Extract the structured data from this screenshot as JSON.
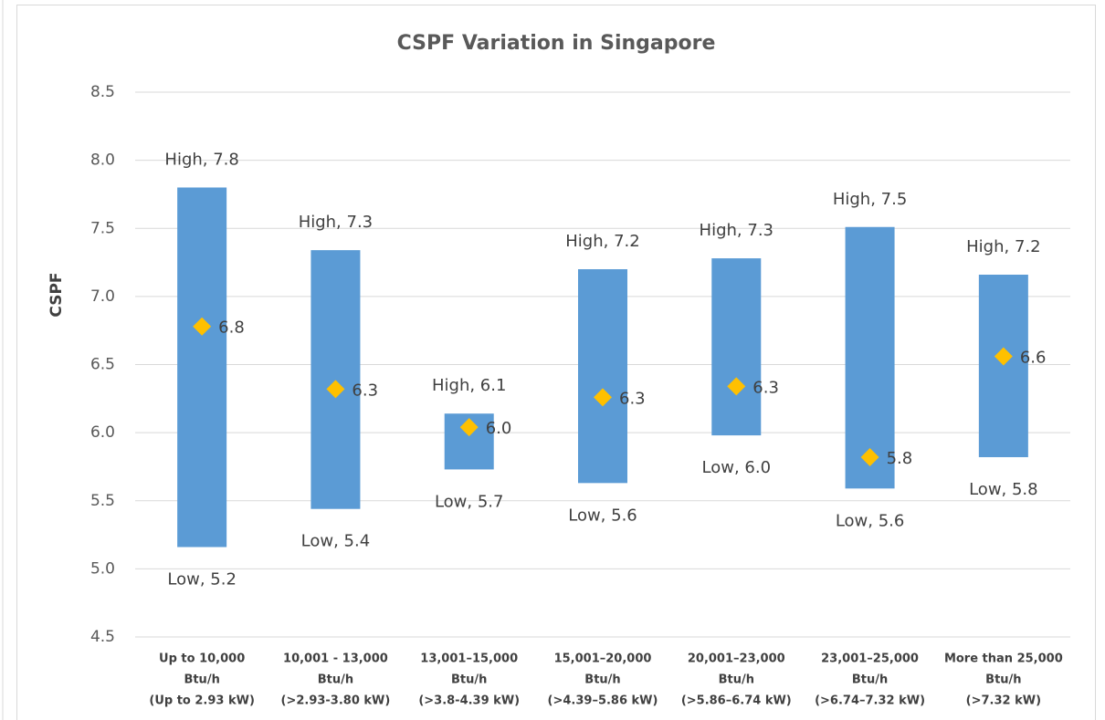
{
  "chart_data": {
    "type": "floating-range",
    "title": "CSPF Variation in Singapore",
    "y_label": "CSPF",
    "categories": [
      [
        "Up to 10,000",
        "Btu/h",
        "(Up to 2.93 kW)"
      ],
      [
        "10,001 - 13,000",
        "Btu/h",
        "(>2.93-3.80 kW)"
      ],
      [
        "13,001–15,000",
        "Btu/h",
        "(>3.8-4.39 kW)"
      ],
      [
        "15,001–20,000",
        "Btu/h",
        "(>4.39–5.86  kW)"
      ],
      [
        "20,001–23,000",
        "Btu/h",
        "(>5.86–6.74  kW)"
      ],
      [
        "23,001–25,000",
        "Btu/h",
        "(>6.74–7.32  kW)"
      ],
      [
        "More than 25,000",
        "Btu/h",
        "(>7.32 kW)"
      ]
    ],
    "series": [
      {
        "color": "#5b9bd5",
        "values": [
          7.8,
          7.34,
          6.14,
          7.2,
          7.28,
          7.51,
          7.16
        ],
        "value_labels": [
          "High, 7.8",
          "High, 7.3",
          "High, 6.1",
          "High, 7.2",
          "High, 7.3",
          "High, 7.5",
          "High, 7.2"
        ]
      },
      {
        "color": "#5b9bd5",
        "values": [
          5.16,
          5.44,
          5.73,
          5.63,
          5.98,
          5.59,
          5.82
        ],
        "value_labels": [
          "Low, 5.2",
          "Low, 5.4",
          "Low, 5.7",
          "Low, 5.6",
          "Low, 6.0",
          "Low, 5.6",
          "Low, 5.8"
        ]
      },
      {
        "color": "#ffc000",
        "values": [
          6.78,
          6.32,
          6.04,
          6.26,
          6.34,
          5.82,
          6.56
        ],
        "value_labels": [
          "6.8",
          "6.3",
          "6.0",
          "6.3",
          "6.3",
          "5.8",
          "6.6"
        ]
      }
    ],
    "ylim": [
      4.5,
      8.5
    ],
    "yticks": [
      4.5,
      {
        "value": 5,
        "label": "5.0"
      },
      5.5,
      {
        "value": 6,
        "label": "6.0"
      },
      6.5,
      {
        "value": 7,
        "label": "7.0"
      },
      7.5,
      {
        "value": 8,
        "label": "8.0"
      },
      8.5
    ],
    "grid": true
  }
}
